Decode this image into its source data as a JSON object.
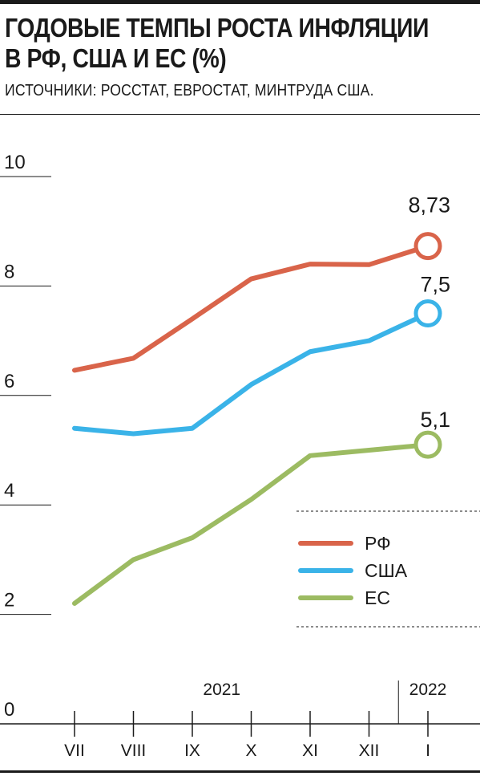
{
  "header": {
    "title_lines": [
      "ГОДОВЫЕ ТЕМПЫ РОСТА ИНФЛЯЦИИ",
      "В РФ, США И ЕС (%)"
    ],
    "source": "ИСТОЧНИКИ: РОССТАТ, ЕВРОСТАТ, МИНТРУДА США."
  },
  "chart_data": {
    "type": "line",
    "title": "ГОДОВЫЕ ТЕМПЫ РОСТА ИНФЛЯЦИИ В РФ, США И ЕС (%)",
    "x": [
      "VII",
      "VIII",
      "IX",
      "X",
      "XI",
      "XII",
      "I"
    ],
    "year_labels": [
      {
        "label": "2021",
        "span": [
          "VII",
          "XII"
        ]
      },
      {
        "label": "2022",
        "span": [
          "I",
          "I"
        ]
      }
    ],
    "yticks": [
      "0",
      "2",
      "4",
      "6",
      "8",
      "10"
    ],
    "ylim": [
      0,
      10
    ],
    "grid": false,
    "legend_position": "right",
    "series": [
      {
        "name": "РФ",
        "color": "#d9644a",
        "values": [
          6.46,
          6.68,
          7.4,
          8.13,
          8.4,
          8.39,
          8.73
        ],
        "end_label": "8,73"
      },
      {
        "name": "США",
        "color": "#3ab3e8",
        "values": [
          5.4,
          5.3,
          5.4,
          6.2,
          6.8,
          7.0,
          7.5
        ],
        "end_label": "7,5"
      },
      {
        "name": "ЕС",
        "color": "#9cbb62",
        "values": [
          2.2,
          3.0,
          3.4,
          4.1,
          4.9,
          5.0,
          5.1
        ],
        "end_label": "5,1"
      }
    ]
  }
}
